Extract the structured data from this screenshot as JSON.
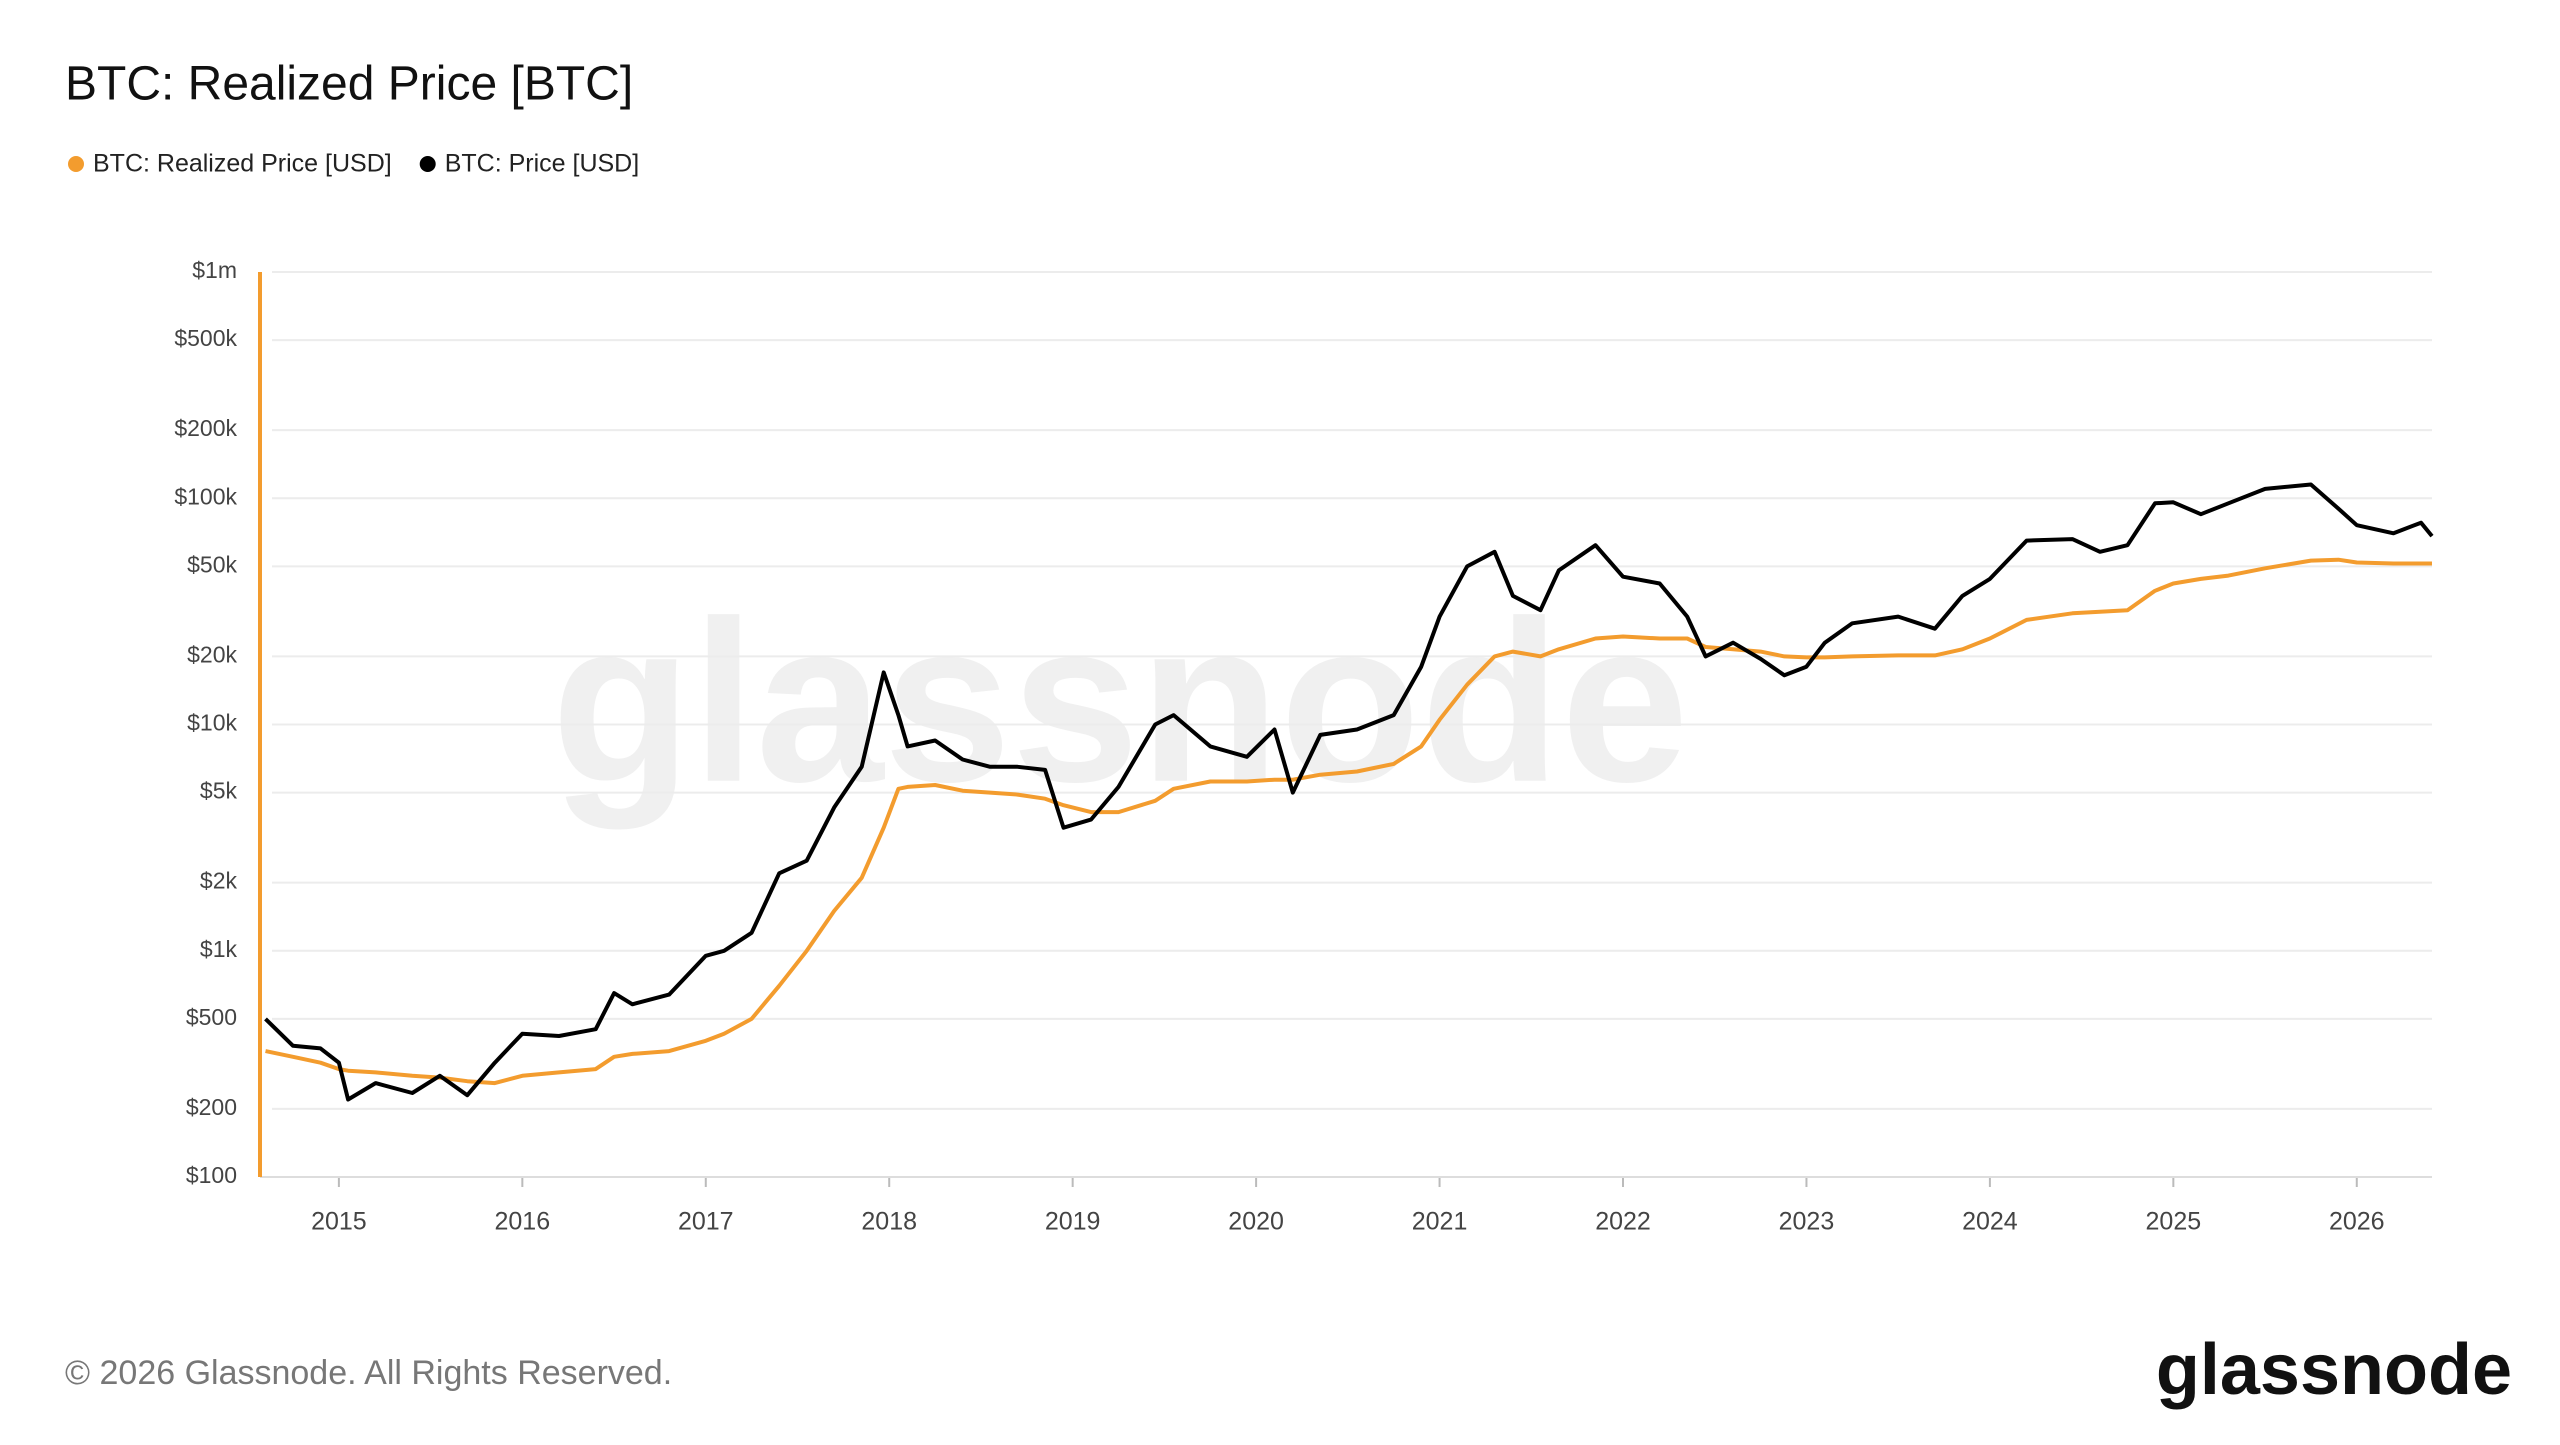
{
  "chart_data": {
    "type": "line",
    "title": "BTC: Realized Price [BTC]",
    "x": [
      2014.6,
      2014.75,
      2014.9,
      2015.0,
      2015.05,
      2015.2,
      2015.4,
      2015.55,
      2015.7,
      2015.85,
      2016.0,
      2016.2,
      2016.4,
      2016.5,
      2016.6,
      2016.8,
      2017.0,
      2017.1,
      2017.25,
      2017.4,
      2017.55,
      2017.7,
      2017.85,
      2017.97,
      2018.05,
      2018.1,
      2018.25,
      2018.4,
      2018.55,
      2018.7,
      2018.85,
      2018.95,
      2019.1,
      2019.25,
      2019.45,
      2019.55,
      2019.75,
      2019.95,
      2020.1,
      2020.2,
      2020.35,
      2020.55,
      2020.75,
      2020.9,
      2021.0,
      2021.15,
      2021.3,
      2021.4,
      2021.55,
      2021.65,
      2021.85,
      2022.0,
      2022.2,
      2022.35,
      2022.45,
      2022.6,
      2022.75,
      2022.88,
      2023.0,
      2023.1,
      2023.25,
      2023.5,
      2023.7,
      2023.85,
      2024.0,
      2024.2,
      2024.45,
      2024.6,
      2024.75,
      2024.9,
      2025.0,
      2025.15,
      2025.3,
      2025.5,
      2025.75,
      2025.9,
      2026.0,
      2026.2,
      2026.35,
      2026.41
    ],
    "series": [
      {
        "name": "BTC: Realized Price [USD]",
        "color": "#f39c2e",
        "values": [
          360,
          340,
          320,
          300,
          295,
          290,
          280,
          275,
          265,
          260,
          280,
          290,
          300,
          340,
          350,
          360,
          400,
          430,
          500,
          700,
          1000,
          1500,
          2100,
          3500,
          5200,
          5300,
          5400,
          5100,
          5000,
          4900,
          4700,
          4400,
          4100,
          4100,
          4600,
          5200,
          5600,
          5600,
          5700,
          5700,
          6000,
          6200,
          6700,
          8000,
          10500,
          15000,
          20000,
          21000,
          20000,
          21500,
          24000,
          24500,
          24000,
          24000,
          22000,
          21500,
          21000,
          20000,
          19800,
          19800,
          20000,
          20200,
          20200,
          21500,
          24000,
          29000,
          31000,
          31500,
          32000,
          39000,
          42000,
          44000,
          45500,
          49000,
          53000,
          53500,
          52000,
          51500,
          51500,
          51500
        ]
      },
      {
        "name": "BTC: Price [USD]",
        "color": "#000000",
        "values": [
          500,
          380,
          370,
          320,
          220,
          260,
          235,
          280,
          230,
          320,
          430,
          420,
          450,
          650,
          580,
          640,
          950,
          1000,
          1200,
          2200,
          2500,
          4300,
          6500,
          17000,
          11000,
          8000,
          8500,
          7000,
          6500,
          6500,
          6300,
          3500,
          3800,
          5300,
          10000,
          11000,
          8000,
          7200,
          9500,
          5000,
          9000,
          9500,
          11000,
          18000,
          30000,
          50000,
          58000,
          37000,
          32000,
          48000,
          62000,
          45000,
          42000,
          30000,
          20000,
          23000,
          19500,
          16500,
          18000,
          23000,
          28000,
          30000,
          26500,
          37000,
          44000,
          65000,
          66000,
          58000,
          62000,
          95000,
          96000,
          85000,
          95000,
          110000,
          115000,
          90000,
          76000,
          70000,
          78000,
          68000
        ]
      }
    ],
    "xlim": [
      2014.57,
      2026.41
    ],
    "xticks": [
      2015,
      2016,
      2017,
      2018,
      2019,
      2020,
      2021,
      2022,
      2023,
      2024,
      2025,
      2026
    ],
    "ylim": [
      100,
      1000000
    ],
    "yticks": [
      {
        "value": 100,
        "label": "$100"
      },
      {
        "value": 200,
        "label": "$200"
      },
      {
        "value": 500,
        "label": "$500"
      },
      {
        "value": 1000,
        "label": "$1k"
      },
      {
        "value": 2000,
        "label": "$2k"
      },
      {
        "value": 5000,
        "label": "$5k"
      },
      {
        "value": 10000,
        "label": "$10k"
      },
      {
        "value": 20000,
        "label": "$20k"
      },
      {
        "value": 50000,
        "label": "$50k"
      },
      {
        "value": 100000,
        "label": "$100k"
      },
      {
        "value": 200000,
        "label": "$200k"
      },
      {
        "value": 500000,
        "label": "$500k"
      },
      {
        "value": 1000000,
        "label": "$1m"
      }
    ],
    "log_y": true,
    "grid": true
  },
  "footer": "© 2026 Glassnode. All Rights Reserved.",
  "logo": "glassnode"
}
